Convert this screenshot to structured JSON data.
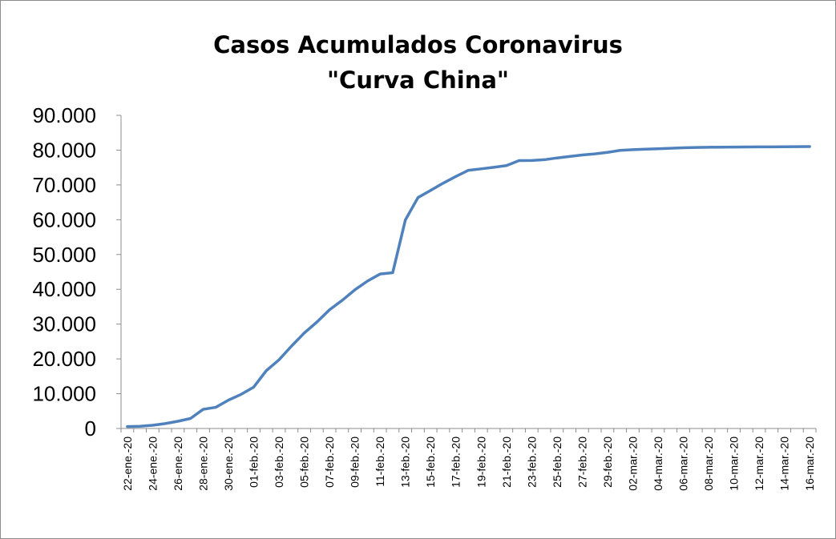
{
  "chart_data": {
    "type": "line",
    "title_line1": "Casos Acumulados Coronavirus",
    "title_line2": "\"Curva China\"",
    "xlabel": "",
    "ylabel": "",
    "ylim": [
      0,
      90000
    ],
    "yticks": [
      0,
      10000,
      20000,
      30000,
      40000,
      50000,
      60000,
      70000,
      80000,
      90000
    ],
    "ytick_labels": [
      "0",
      "10.000",
      "20.000",
      "30.000",
      "40.000",
      "50.000",
      "60.000",
      "70.000",
      "80.000",
      "90.000"
    ],
    "x_tick_labels": [
      "22-ene.-20",
      "24-ene.-20",
      "26-ene.-20",
      "28-ene.-20",
      "30-ene.-20",
      "01-feb.-20",
      "03-feb.-20",
      "05-feb.-20",
      "07-feb.-20",
      "09-feb.-20",
      "11-feb.-20",
      "13-feb.-20",
      "15-feb.-20",
      "17-feb.-20",
      "19-feb.-20",
      "21-feb.-20",
      "23-feb.-20",
      "25-feb.-20",
      "27-feb.-20",
      "29-feb.-20",
      "02-mar.-20",
      "04-mar.-20",
      "06-mar.-20",
      "08-mar.-20",
      "10-mar.-20",
      "12-mar.-20",
      "14-mar.-20",
      "16-mar.-20"
    ],
    "grid": false,
    "legend": "none",
    "line_color": "#4f81bd",
    "series": [
      {
        "x": [
          "22-ene.-20",
          "23-ene.-20",
          "24-ene.-20",
          "25-ene.-20",
          "26-ene.-20",
          "27-ene.-20",
          "28-ene.-20",
          "29-ene.-20",
          "30-ene.-20",
          "31-ene.-20",
          "01-feb.-20",
          "02-feb.-20",
          "03-feb.-20",
          "04-feb.-20",
          "05-feb.-20",
          "06-feb.-20",
          "07-feb.-20",
          "08-feb.-20",
          "09-feb.-20",
          "10-feb.-20",
          "11-feb.-20",
          "12-feb.-20",
          "13-feb.-20",
          "14-feb.-20",
          "15-feb.-20",
          "16-feb.-20",
          "17-feb.-20",
          "18-feb.-20",
          "19-feb.-20",
          "20-feb.-20",
          "21-feb.-20",
          "22-feb.-20",
          "23-feb.-20",
          "24-feb.-20",
          "25-feb.-20",
          "26-feb.-20",
          "27-feb.-20",
          "28-feb.-20",
          "29-feb.-20",
          "01-mar.-20",
          "02-mar.-20",
          "03-mar.-20",
          "04-mar.-20",
          "05-mar.-20",
          "06-mar.-20",
          "07-mar.-20",
          "08-mar.-20",
          "09-mar.-20",
          "10-mar.-20",
          "11-mar.-20",
          "12-mar.-20",
          "13-mar.-20",
          "14-mar.-20",
          "15-mar.-20",
          "16-mar.-20"
        ],
        "values": [
          548,
          643,
          920,
          1406,
          2075,
          2877,
          5509,
          6087,
          8141,
          9802,
          11891,
          16630,
          19716,
          23707,
          27440,
          30587,
          34110,
          36814,
          39829,
          42354,
          44386,
          44759,
          59895,
          66358,
          68413,
          70513,
          72434,
          74211,
          74619,
          75077,
          75550,
          77001,
          77022,
          77241,
          77754,
          78166,
          78600,
          78928,
          79356,
          79932,
          80136,
          80261,
          80386,
          80537,
          80690,
          80770,
          80823,
          80860,
          80887,
          80921,
          80932,
          80945,
          80977,
          81003,
          81033
        ]
      }
    ]
  }
}
